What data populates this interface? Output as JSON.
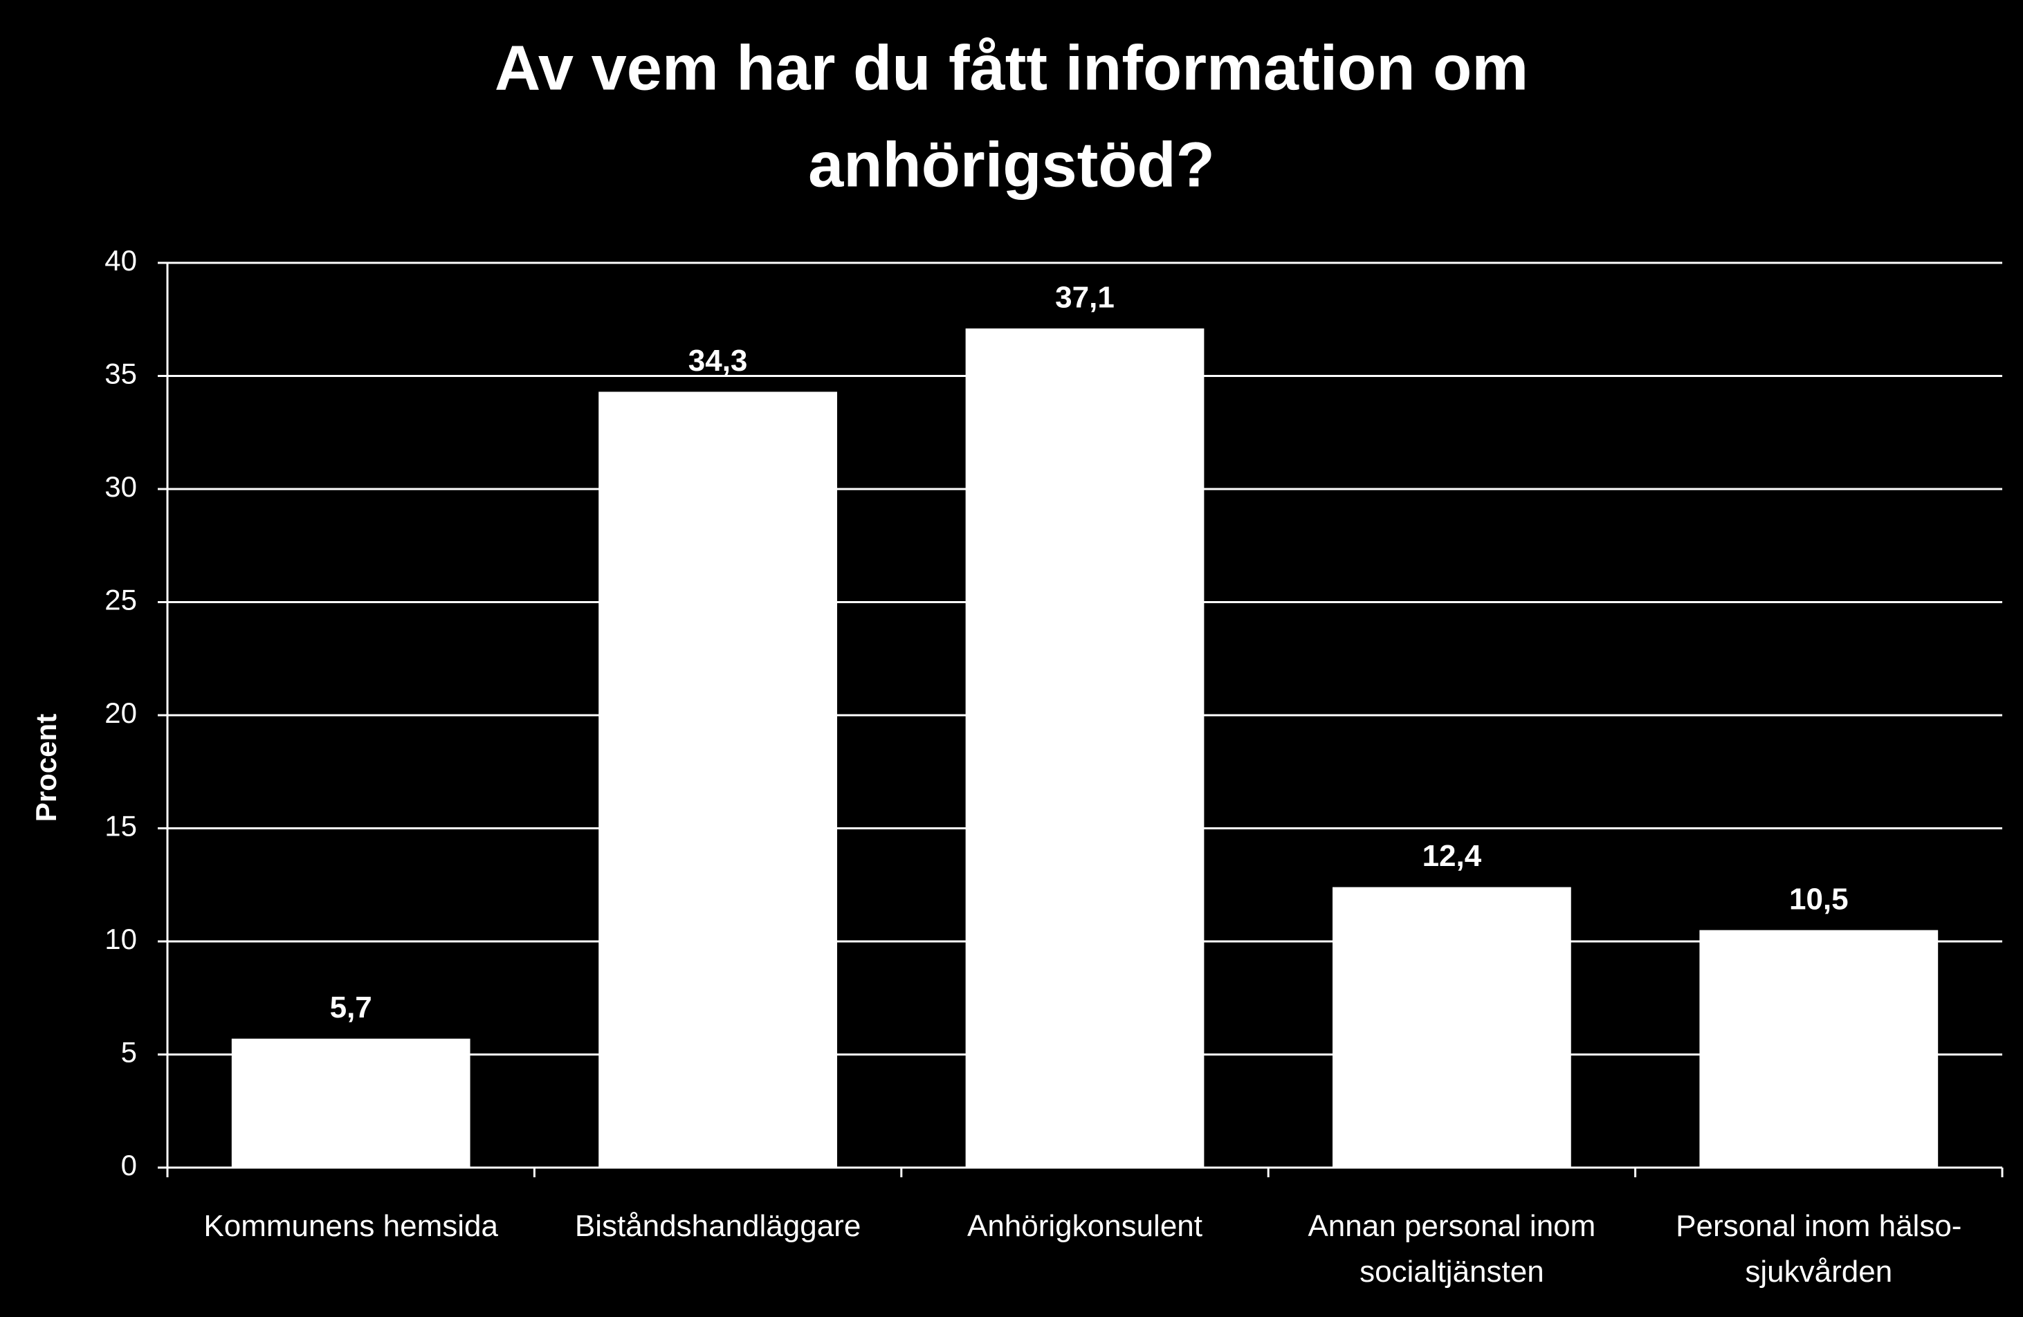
{
  "chart_data": {
    "type": "bar",
    "title": [
      "Av vem har du fått information om",
      "anhörigstöd?"
    ],
    "y_label": "Procent",
    "categories": [
      "Kommunens hemsida",
      "Biståndshandläggare",
      "Anhörigkonsulent",
      "Annan personal inom socialtjänsten",
      "Personal inom hälso-sjukvården"
    ],
    "values": [
      5.7,
      34.3,
      37.1,
      12.4,
      10.5
    ],
    "value_labels": [
      "5,7",
      "34,3",
      "37,1",
      "12,4",
      "10,5"
    ],
    "color": "#ffffff",
    "ylim": [
      0,
      40
    ],
    "yticks": [
      0,
      5,
      10,
      15,
      20,
      25,
      30,
      35,
      40
    ],
    "grid": true
  }
}
